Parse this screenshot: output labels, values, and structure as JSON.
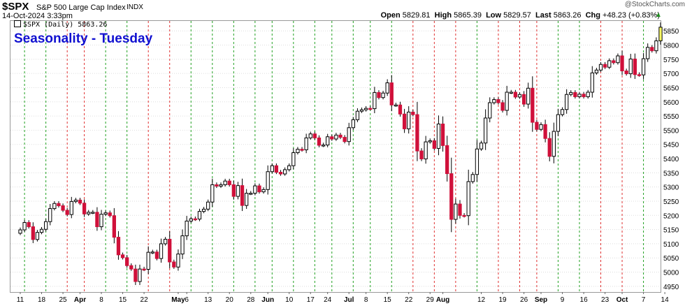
{
  "header": {
    "ticker": "$SPX",
    "description": "S&P 500 Large Cap Index",
    "exchange": "INDX",
    "date": "14-Oct-2024 3:33pm",
    "credit": "@StockCharts.com",
    "ohlc": [
      {
        "label": "Open",
        "value": "5829.81"
      },
      {
        "label": "High",
        "value": "5865.39"
      },
      {
        "label": "Low",
        "value": "5829.57"
      },
      {
        "label": "Last",
        "value": "5863.26"
      },
      {
        "label": "Chg",
        "value": "+48.23 (+0.83%)"
      }
    ],
    "up_arrow": "▲"
  },
  "legend": {
    "text": "$SPX (Daily) 5863.26",
    "icon": "candlestick-icon"
  },
  "colors": {
    "up": "#ffffff",
    "down": "#d0103a",
    "up_last": "#ffff66",
    "grid": "#dddddd",
    "green_line": "#20a020",
    "red_line": "#e03030",
    "title": "#1010d0"
  },
  "chart_data": {
    "type": "candlestick",
    "title": "Seasonality - Tuesday",
    "ylim": [
      4930,
      5885
    ],
    "y_ticks": [
      4950,
      5000,
      5050,
      5100,
      5150,
      5200,
      5250,
      5300,
      5350,
      5400,
      5450,
      5500,
      5550,
      5600,
      5650,
      5700,
      5750,
      5800,
      5850
    ],
    "x_labels": [
      {
        "label": "11",
        "index": 0
      },
      {
        "label": "18",
        "index": 5
      },
      {
        "label": "25",
        "index": 10
      },
      {
        "label": "Apr",
        "index": 14,
        "bold": true
      },
      {
        "label": "8",
        "index": 19
      },
      {
        "label": "15",
        "index": 24
      },
      {
        "label": "22",
        "index": 29
      },
      {
        "label": "May",
        "index": 37,
        "bold": true
      },
      {
        "label": "6",
        "index": 39
      },
      {
        "label": "13",
        "index": 44
      },
      {
        "label": "20",
        "index": 49
      },
      {
        "label": "28",
        "index": 54
      },
      {
        "label": "Jun",
        "index": 58,
        "bold": true
      },
      {
        "label": "10",
        "index": 63
      },
      {
        "label": "17",
        "index": 68
      },
      {
        "label": "24",
        "index": 72
      },
      {
        "label": "Jul",
        "index": 77,
        "bold": true
      },
      {
        "label": "8",
        "index": 81
      },
      {
        "label": "15",
        "index": 86
      },
      {
        "label": "22",
        "index": 91
      },
      {
        "label": "29",
        "index": 96
      },
      {
        "label": "Aug",
        "index": 99,
        "bold": true
      },
      {
        "label": "12",
        "index": 108
      },
      {
        "label": "19",
        "index": 113
      },
      {
        "label": "26",
        "index": 118
      },
      {
        "label": "Sep",
        "index": 122,
        "bold": true
      },
      {
        "label": "9",
        "index": 127
      },
      {
        "label": "16",
        "index": 132
      },
      {
        "label": "23",
        "index": 137
      },
      {
        "label": "Oct",
        "index": 141,
        "bold": true
      },
      {
        "label": "7",
        "index": 146
      },
      {
        "label": "14",
        "index": 151
      }
    ],
    "tuesday_lines": [
      {
        "index": 1,
        "color": "green"
      },
      {
        "index": 6,
        "color": "green"
      },
      {
        "index": 11,
        "color": "red"
      },
      {
        "index": 15,
        "color": "red"
      },
      {
        "index": 20,
        "color": "green"
      },
      {
        "index": 25,
        "color": "green"
      },
      {
        "index": 30,
        "color": "red"
      },
      {
        "index": 35,
        "color": "red"
      },
      {
        "index": 40,
        "color": "green"
      },
      {
        "index": 45,
        "color": "green"
      },
      {
        "index": 50,
        "color": "green"
      },
      {
        "index": 55,
        "color": "green"
      },
      {
        "index": 59,
        "color": "green"
      },
      {
        "index": 64,
        "color": "green"
      },
      {
        "index": 69,
        "color": "green"
      },
      {
        "index": 73,
        "color": "green"
      },
      {
        "index": 78,
        "color": "green"
      },
      {
        "index": 82,
        "color": "green"
      },
      {
        "index": 87,
        "color": "green"
      },
      {
        "index": 92,
        "color": "red"
      },
      {
        "index": 97,
        "color": "red"
      },
      {
        "index": 102,
        "color": "red"
      },
      {
        "index": 107,
        "color": "green"
      },
      {
        "index": 112,
        "color": "red"
      },
      {
        "index": 117,
        "color": "red"
      },
      {
        "index": 121,
        "color": "red"
      },
      {
        "index": 126,
        "color": "green"
      },
      {
        "index": 131,
        "color": "green"
      },
      {
        "index": 136,
        "color": "red"
      },
      {
        "index": 141,
        "color": "red"
      },
      {
        "index": 146,
        "color": "green"
      }
    ],
    "closes": [
      5149,
      5175,
      5160,
      5115,
      5140,
      5151,
      5178,
      5224,
      5242,
      5234,
      5218,
      5203,
      5249,
      5254,
      5243,
      5205,
      5211,
      5211,
      5160,
      5204,
      5209,
      5199,
      5123,
      5061,
      5051,
      5023,
      5011,
      4967,
      5011,
      5010,
      5070,
      5071,
      5048,
      5100,
      5116,
      5036,
      5018,
      5064,
      5128,
      5180,
      5188,
      5187,
      5214,
      5222,
      5247,
      5308,
      5303,
      5308,
      5321,
      5308,
      5267,
      5305,
      5235,
      5278,
      5278,
      5304,
      5283,
      5291,
      5354,
      5375,
      5352,
      5346,
      5361,
      5375,
      5421,
      5433,
      5431,
      5473,
      5487,
      5473,
      5447,
      5448,
      5477,
      5469,
      5483,
      5475,
      5460,
      5509,
      5537,
      5567,
      5572,
      5577,
      5576,
      5633,
      5615,
      5631,
      5667,
      5589,
      5589,
      5557,
      5505,
      5564,
      5555,
      5427,
      5399,
      5459,
      5463,
      5436,
      5522,
      5446,
      5347,
      5186,
      5240,
      5200,
      5199,
      5319,
      5344,
      5434,
      5455,
      5543,
      5597,
      5608,
      5597,
      5570,
      5634,
      5634,
      5617,
      5626,
      5592,
      5648,
      5528,
      5503,
      5520,
      5471,
      5408,
      5496,
      5555,
      5573,
      5626,
      5633,
      5618,
      5627,
      5618,
      5634,
      5702,
      5712,
      5732,
      5722,
      5745,
      5738,
      5762,
      5709,
      5699,
      5751,
      5696,
      5695,
      5752,
      5792,
      5780,
      5815,
      5863
    ],
    "last_close": 5863.26
  }
}
